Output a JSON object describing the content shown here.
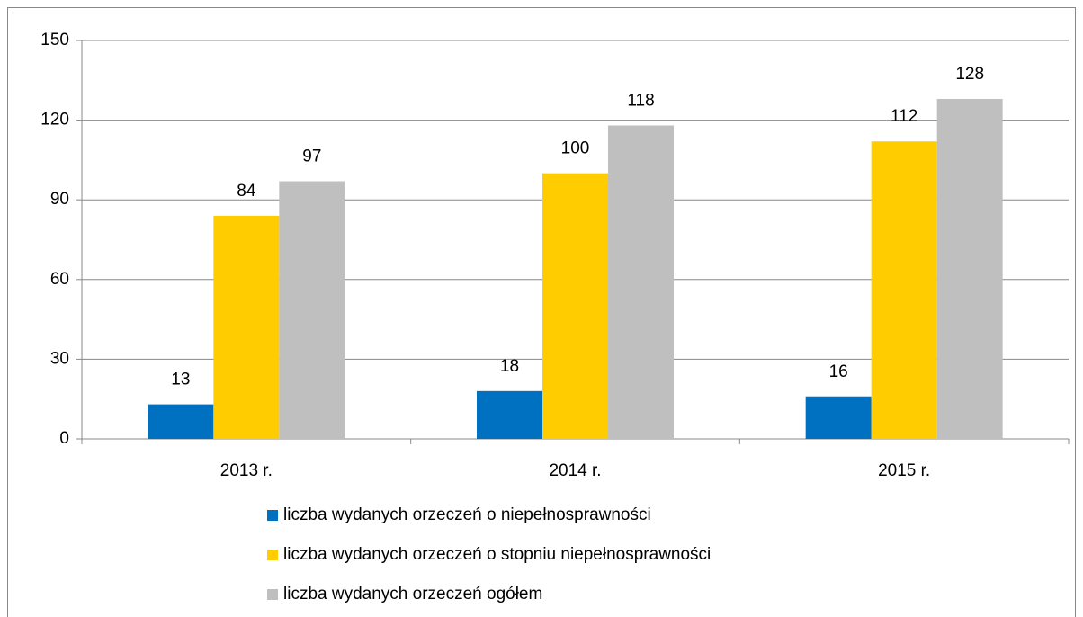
{
  "chart_data": {
    "type": "bar",
    "categories": [
      "2013 r.",
      "2014 r.",
      "2015 r."
    ],
    "series": [
      {
        "name": "liczba wydanych orzeczeń o niepełnosprawności",
        "color": "#0070c0",
        "values": [
          13,
          18,
          16
        ]
      },
      {
        "name": "liczba wydanych orzeczeń o stopniu niepełnosprawności",
        "color": "#ffcc00",
        "values": [
          84,
          100,
          112
        ]
      },
      {
        "name": "liczba wydanych orzeczeń ogółem",
        "color": "#bfbfbf",
        "values": [
          97,
          118,
          128
        ]
      }
    ],
    "ylim": [
      0,
      150
    ],
    "yticks": [
      0,
      30,
      60,
      90,
      120,
      150
    ],
    "grid": true,
    "legend": "bottom"
  }
}
